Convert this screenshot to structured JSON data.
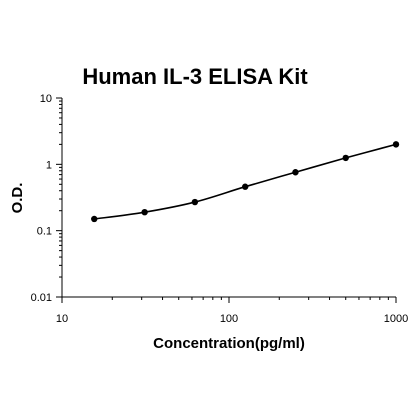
{
  "chart_data": {
    "type": "scatter",
    "title": "Human IL-3 ELISA Kit",
    "xlabel": "Concentration(pg/ml)",
    "ylabel": "O.D.",
    "xscale": "log",
    "yscale": "log",
    "xlim": [
      10,
      1000
    ],
    "ylim": [
      0.01,
      10
    ],
    "x_ticks": [
      10,
      100,
      1000
    ],
    "x_tick_labels": [
      "10",
      "100",
      "1000"
    ],
    "y_ticks": [
      0.01,
      0.1,
      1,
      10
    ],
    "y_tick_labels": [
      "0.01",
      "0.1",
      "1",
      "10"
    ],
    "grid": false,
    "fit_curve": true,
    "series": [
      {
        "x": [
          15.6,
          31.25,
          62.5,
          125,
          250,
          500,
          1000
        ],
        "y": [
          0.15,
          0.19,
          0.27,
          0.46,
          0.76,
          1.25,
          2.0
        ],
        "color": "#000000"
      }
    ]
  }
}
